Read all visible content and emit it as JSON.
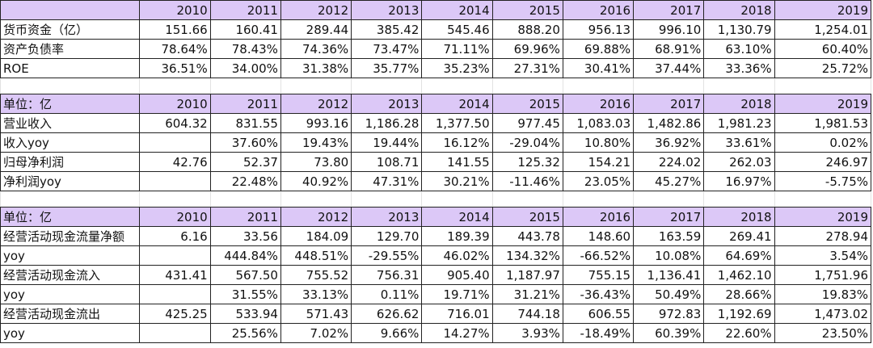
{
  "years": [
    "2010",
    "2011",
    "2012",
    "2013",
    "2014",
    "2015",
    "2016",
    "2017",
    "2018",
    "2019"
  ],
  "colors": {
    "header_bg": "#dcc8f7"
  },
  "tables": [
    {
      "header_label": "",
      "rows": [
        {
          "label": "货币资金（亿）",
          "values": [
            "151.66",
            "160.41",
            "289.44",
            "385.42",
            "545.46",
            "888.20",
            "956.13",
            "996.10",
            "1,130.79",
            "1,254.01"
          ]
        },
        {
          "label": "资产负债率",
          "values": [
            "78.64%",
            "78.43%",
            "74.36%",
            "73.47%",
            "71.11%",
            "69.96%",
            "69.88%",
            "68.91%",
            "63.10%",
            "60.40%"
          ]
        },
        {
          "label": "ROE",
          "values": [
            "36.51%",
            "34.00%",
            "31.38%",
            "35.77%",
            "35.23%",
            "27.31%",
            "30.41%",
            "37.44%",
            "33.36%",
            "25.72%"
          ]
        }
      ]
    },
    {
      "header_label": "单位：亿",
      "rows": [
        {
          "label": "营业收入",
          "values": [
            "604.32",
            "831.55",
            "993.16",
            "1,186.28",
            "1,377.50",
            "977.45",
            "1,083.03",
            "1,482.86",
            "1,981.23",
            "1,981.53"
          ]
        },
        {
          "label": "收入yoy",
          "values": [
            "",
            "37.60%",
            "19.43%",
            "19.44%",
            "16.12%",
            "-29.04%",
            "10.80%",
            "36.92%",
            "33.61%",
            "0.02%"
          ]
        },
        {
          "label": "归母净利润",
          "values": [
            "42.76",
            "52.37",
            "73.80",
            "108.71",
            "141.55",
            "125.32",
            "154.21",
            "224.02",
            "262.03",
            "246.97"
          ]
        },
        {
          "label": "净利润yoy",
          "values": [
            "",
            "22.48%",
            "40.92%",
            "47.31%",
            "30.21%",
            "-11.46%",
            "23.05%",
            "45.27%",
            "16.97%",
            "-5.75%"
          ]
        }
      ]
    },
    {
      "header_label": "单位：亿",
      "rows": [
        {
          "label": "经营活动现金流量净额",
          "values": [
            "6.16",
            "33.56",
            "184.09",
            "129.70",
            "189.39",
            "443.78",
            "148.60",
            "163.59",
            "269.41",
            "278.94"
          ]
        },
        {
          "label": "yoy",
          "values": [
            "",
            "444.84%",
            "448.51%",
            "-29.55%",
            "46.02%",
            "134.32%",
            "-66.52%",
            "10.08%",
            "64.69%",
            "3.54%"
          ]
        },
        {
          "label": "经营活动现金流入",
          "values": [
            "431.41",
            "567.50",
            "755.52",
            "756.31",
            "905.40",
            "1,187.97",
            "755.15",
            "1,136.41",
            "1,462.10",
            "1,751.96"
          ]
        },
        {
          "label": "yoy",
          "values": [
            "",
            "31.55%",
            "33.13%",
            "0.11%",
            "19.71%",
            "31.21%",
            "-36.43%",
            "50.49%",
            "28.66%",
            "19.83%"
          ]
        },
        {
          "label": "经营活动现金流出",
          "values": [
            "425.25",
            "533.94",
            "571.43",
            "626.62",
            "716.01",
            "744.18",
            "606.55",
            "972.83",
            "1,192.69",
            "1,473.02"
          ]
        },
        {
          "label": "yoy",
          "values": [
            "",
            "25.56%",
            "7.02%",
            "9.66%",
            "14.27%",
            "3.93%",
            "-18.49%",
            "60.39%",
            "22.60%",
            "23.50%"
          ]
        }
      ]
    }
  ]
}
